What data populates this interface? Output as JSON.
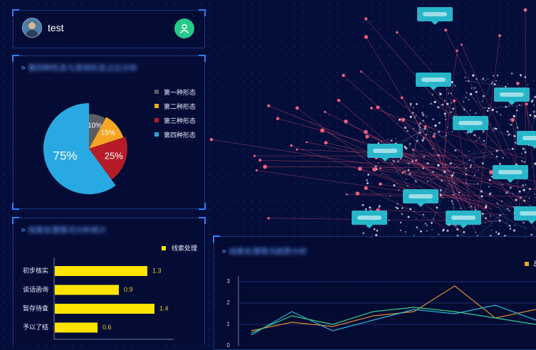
{
  "user": {
    "name": "test"
  },
  "pie_panel": {
    "title": "第四种形态与其他形态占比分析",
    "chart_data": {
      "type": "pie",
      "categories": [
        "第一种形态",
        "第二种形态",
        "第三种形态",
        "第四种形态"
      ],
      "values": [
        10,
        15,
        25,
        75
      ],
      "labels": [
        "10%",
        "15%",
        "25%",
        "75%"
      ],
      "colors": [
        "#5b5d62",
        "#f5a623",
        "#b51c28",
        "#29a9e1"
      ],
      "legend_position": "right"
    }
  },
  "bar_panel": {
    "title": "线索处理情况分析统计",
    "chart_data": {
      "type": "bar",
      "orientation": "horizontal",
      "categories": [
        "初步核实",
        "谈话函询",
        "暂存待查",
        "予以了结"
      ],
      "series": [
        {
          "name": "线索处理",
          "values": [
            1.3,
            0.9,
            1.4,
            0.6
          ]
        }
      ],
      "color": "#ffe400"
    }
  },
  "line_panel": {
    "title": "线索处理情况趋势分析",
    "legend_partial": "总",
    "chart_data": {
      "type": "line",
      "y_ticks": [
        "3",
        "2",
        "1",
        "0"
      ],
      "ylim": [
        0,
        3
      ],
      "grid": true,
      "series": [
        {
          "color": "#e08a2a",
          "values": [
            0.7,
            1.1,
            0.9,
            1.4,
            1.6,
            2.8,
            1.3,
            1.7
          ]
        },
        {
          "color": "#2bb5d8",
          "values": [
            0.5,
            1.6,
            0.7,
            1.2,
            1.7,
            1.5,
            1.9,
            1.2
          ]
        },
        {
          "color": "#39c98a",
          "values": [
            0.6,
            1.4,
            1.0,
            1.6,
            1.8,
            1.6,
            1.3,
            1.0
          ]
        }
      ]
    }
  },
  "globe_labels": [
    "",
    "",
    "",
    "",
    "",
    "",
    "",
    "",
    "",
    "",
    ""
  ],
  "colors": {
    "accent": "#2a83ff",
    "background": "#050d3a",
    "avatar_button": "#27c98b"
  }
}
